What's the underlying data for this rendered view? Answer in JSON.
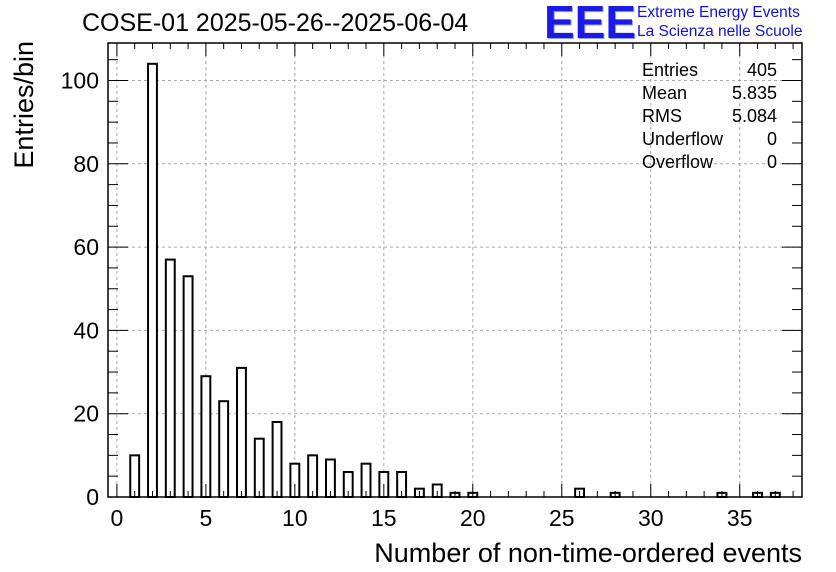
{
  "header": {
    "title": "COSE-01 2025-05-26--2025-06-04",
    "logo": {
      "letters": "EEE",
      "line1": "Extreme Energy Events",
      "line2": "La Scienza nelle Scuole",
      "color": "#1010e0"
    }
  },
  "stats": {
    "entries_label": "Entries",
    "entries_value": "405",
    "mean_label": "Mean",
    "mean_value": "5.835",
    "rms_label": "RMS",
    "rms_value": "5.084",
    "underflow_label": "Underflow",
    "underflow_value": "0",
    "overflow_label": "Overflow",
    "overflow_value": "0"
  },
  "chart_data": {
    "type": "bar",
    "xlabel": "Number of non-time-ordered events",
    "ylabel": "Entries/bin",
    "xlim": [
      -0.5,
      38.5
    ],
    "ylim": [
      0,
      109
    ],
    "bin_width": 0.5,
    "grid": true,
    "legend_position": "top-right",
    "xticks": [
      0,
      5,
      10,
      15,
      20,
      25,
      30,
      35
    ],
    "yticks": [
      0,
      20,
      40,
      60,
      80,
      100
    ],
    "x": [
      1,
      2,
      3,
      4,
      5,
      6,
      7,
      8,
      9,
      10,
      11,
      12,
      13,
      14,
      15,
      16,
      17,
      18,
      19,
      20,
      26,
      28,
      34,
      36,
      37
    ],
    "values": [
      10,
      104,
      57,
      53,
      29,
      23,
      31,
      14,
      18,
      8,
      10,
      9,
      6,
      8,
      6,
      6,
      2,
      3,
      1,
      1,
      2,
      1,
      1,
      1,
      1
    ]
  }
}
